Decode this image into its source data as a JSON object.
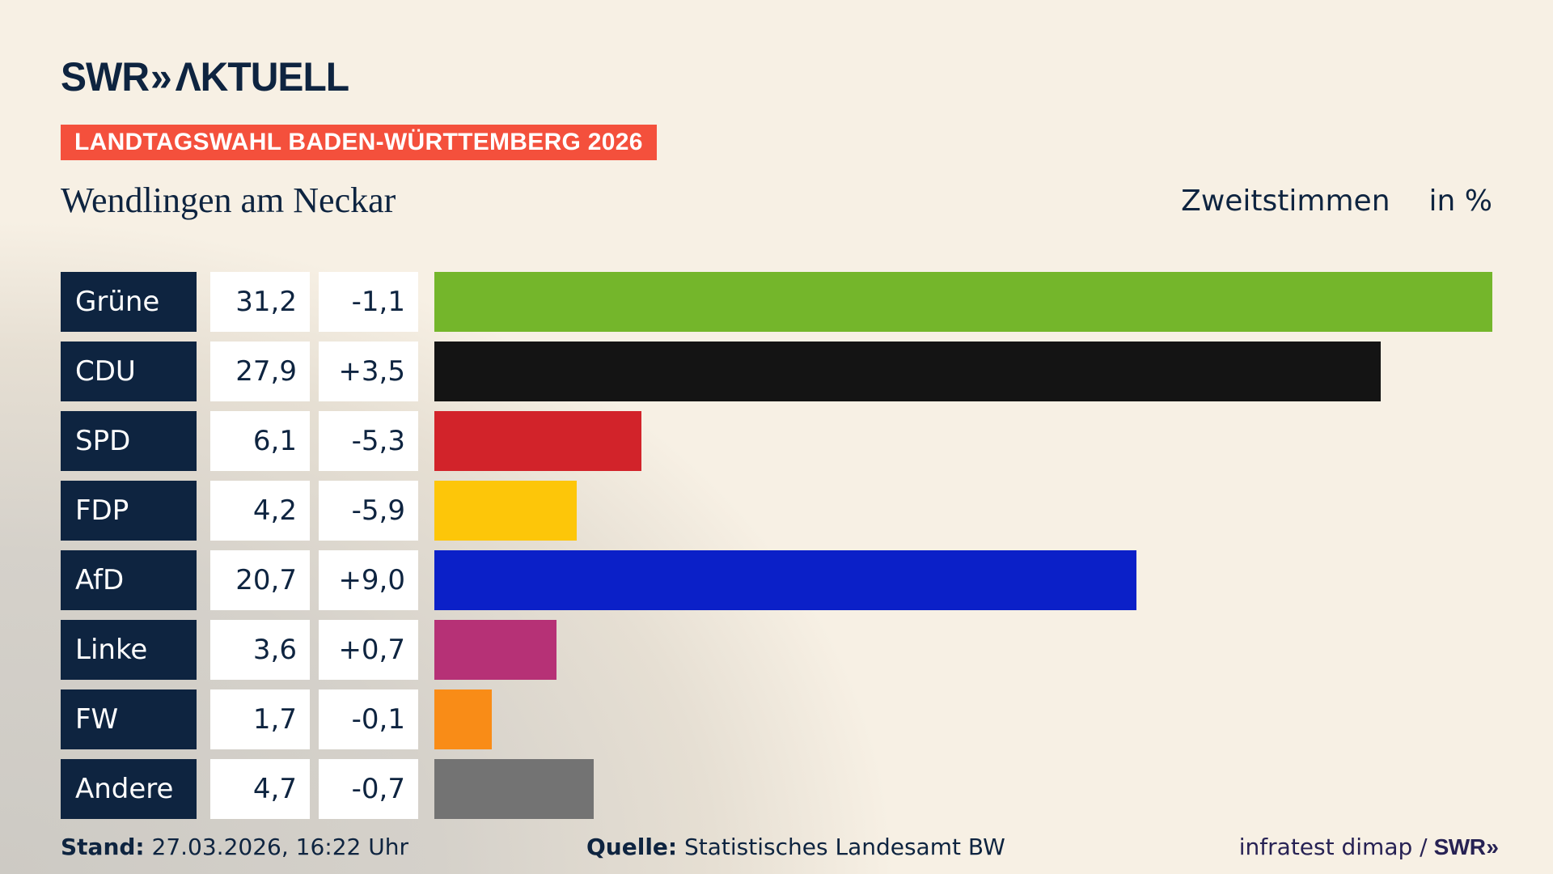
{
  "colors": {
    "background_cream": "#f7f0e4",
    "background_gray": "#cdcac4",
    "navy": "#0e2440",
    "banner_red": "#f4503c",
    "box_white": "#ffffff",
    "credit_ink": "#272254"
  },
  "header": {
    "logo_swr": "SWR",
    "logo_chevrons": "»",
    "logo_aktuell": "ΛKTUELL",
    "banner": "LANDTAGSWAHL BADEN-WÜRTTEMBERG 2026",
    "title": "Wendlingen am Neckar",
    "subtitle": "Zweitstimmen",
    "unit_label": "in %"
  },
  "chart_data": {
    "type": "bar",
    "orientation": "horizontal",
    "title": "Wendlingen am Neckar",
    "series_label": "Zweitstimmen",
    "unit": "%",
    "xlim": [
      0,
      31.2
    ],
    "categories": [
      "Grüne",
      "CDU",
      "SPD",
      "FDP",
      "AfD",
      "Linke",
      "FW",
      "Andere"
    ],
    "values": [
      31.2,
      27.9,
      6.1,
      4.2,
      20.7,
      3.6,
      1.7,
      4.7
    ],
    "changes": [
      -1.1,
      3.5,
      -5.3,
      -5.9,
      9.0,
      0.7,
      -0.1,
      -0.7
    ],
    "value_labels": [
      "31,2",
      "27,9",
      "6,1",
      "4,2",
      "20,7",
      "3,6",
      "1,7",
      "4,7"
    ],
    "change_labels": [
      "-1,1",
      "+3,5",
      "-5,3",
      "-5,9",
      "+9,0",
      "+0,7",
      "-0,1",
      "-0,7"
    ],
    "bar_colors": [
      "#74b62b",
      "#141414",
      "#d2232a",
      "#fdc609",
      "#0b20c8",
      "#b63176",
      "#f98c17",
      "#737373"
    ],
    "legend_position": "none",
    "grid": false
  },
  "footer": {
    "stand_label": "Stand:",
    "stand_value": " 27.03.2026, 16:22 Uhr",
    "source_label": "Quelle:",
    "source_value": " Statistisches Landesamt BW",
    "credit_text": "infratest dimap /",
    "credit_logo_swr": "SWR",
    "credit_logo_chevrons": "»"
  }
}
